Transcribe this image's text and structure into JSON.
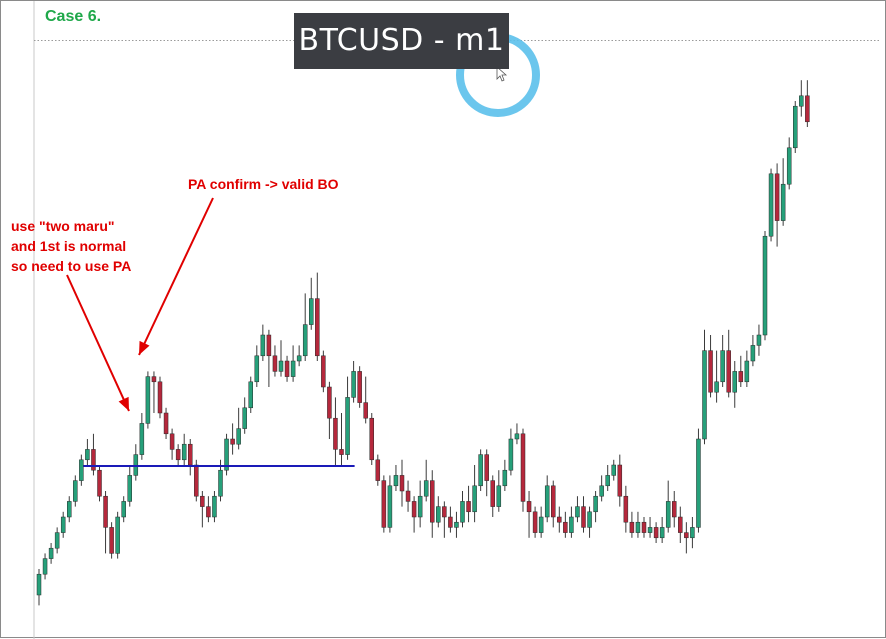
{
  "case_label": "Case 6.",
  "chart_title": "BTCUSD - m1",
  "annotations": {
    "valid_bo": "PA confirm -> valid BO",
    "two_maru": [
      "use \"two maru\"",
      "and 1st is normal",
      "so need to use PA"
    ]
  },
  "colors": {
    "bull": "#26a07a",
    "bear": "#b5283c",
    "wick": "#3a3a3a",
    "level_line": "#1a1ab8",
    "arrow": "#e00000",
    "cursor_ring": "#5bc0eb",
    "grid_dotted": "#9a9a9a"
  },
  "chart_data": {
    "type": "candlestick",
    "symbol": "BTCUSD",
    "timeframe": "m1",
    "ylim": [
      0,
      100
    ],
    "candles": [
      [
        5,
        9,
        3,
        10
      ],
      [
        9,
        12,
        8,
        13
      ],
      [
        12,
        14,
        11,
        15
      ],
      [
        14,
        17,
        13,
        18
      ],
      [
        17,
        20,
        16,
        21
      ],
      [
        20,
        23,
        19,
        24
      ],
      [
        23,
        27,
        22,
        28
      ],
      [
        27,
        31,
        26,
        32
      ],
      [
        31,
        33,
        30,
        35
      ],
      [
        33,
        29,
        28,
        36
      ],
      [
        29,
        24,
        23,
        30
      ],
      [
        24,
        18,
        13,
        25
      ],
      [
        18,
        13,
        12,
        19
      ],
      [
        13,
        20,
        12,
        21
      ],
      [
        20,
        23,
        19,
        24
      ],
      [
        23,
        28,
        22,
        30
      ],
      [
        28,
        32,
        27,
        34
      ],
      [
        32,
        38,
        31,
        40
      ],
      [
        38,
        47,
        37,
        48
      ],
      [
        47,
        46,
        40,
        48
      ],
      [
        46,
        40,
        39,
        47
      ],
      [
        40,
        36,
        35,
        41
      ],
      [
        36,
        33,
        31,
        37
      ],
      [
        33,
        31,
        30,
        34
      ],
      [
        31,
        34,
        30,
        36
      ],
      [
        34,
        30,
        28,
        35
      ],
      [
        30,
        24,
        23,
        31
      ],
      [
        24,
        22,
        18,
        25
      ],
      [
        22,
        20,
        19,
        24
      ],
      [
        20,
        24,
        19,
        25
      ],
      [
        24,
        29,
        23,
        31
      ],
      [
        29,
        35,
        28,
        36
      ],
      [
        35,
        34,
        32,
        38
      ],
      [
        34,
        37,
        33,
        41
      ],
      [
        37,
        41,
        36,
        43
      ],
      [
        41,
        46,
        40,
        47
      ],
      [
        46,
        51,
        45,
        53
      ],
      [
        51,
        55,
        50,
        57
      ],
      [
        55,
        51,
        45,
        56
      ],
      [
        51,
        48,
        47,
        53
      ],
      [
        48,
        50,
        47,
        54
      ],
      [
        50,
        47,
        46,
        51
      ],
      [
        47,
        50,
        46,
        53
      ],
      [
        50,
        51,
        49,
        53
      ],
      [
        51,
        57,
        50,
        63
      ],
      [
        57,
        62,
        56,
        66
      ],
      [
        62,
        51,
        50,
        67
      ],
      [
        51,
        45,
        44,
        52
      ],
      [
        45,
        39,
        35,
        46
      ],
      [
        39,
        33,
        30,
        43
      ],
      [
        33,
        32,
        30,
        40
      ],
      [
        32,
        43,
        31,
        47
      ],
      [
        43,
        48,
        42,
        50
      ],
      [
        48,
        42,
        41,
        49
      ],
      [
        42,
        39,
        38,
        47
      ],
      [
        39,
        31,
        30,
        40
      ],
      [
        31,
        27,
        26,
        32
      ],
      [
        27,
        18,
        17,
        28
      ],
      [
        18,
        26,
        17,
        28
      ],
      [
        26,
        28,
        25,
        30
      ],
      [
        28,
        25,
        22,
        31
      ],
      [
        25,
        23,
        21,
        27
      ],
      [
        23,
        20,
        17,
        24
      ],
      [
        20,
        24,
        18,
        27
      ],
      [
        24,
        27,
        23,
        31
      ],
      [
        27,
        19,
        16,
        29
      ],
      [
        19,
        22,
        18,
        24
      ],
      [
        22,
        20,
        16,
        23
      ],
      [
        20,
        18,
        17,
        22
      ],
      [
        18,
        19,
        16,
        21
      ],
      [
        19,
        23,
        18,
        25
      ],
      [
        23,
        21,
        19,
        26
      ],
      [
        21,
        26,
        19,
        30
      ],
      [
        26,
        32,
        25,
        33
      ],
      [
        32,
        27,
        24,
        33
      ],
      [
        27,
        22,
        20,
        28
      ],
      [
        22,
        26,
        21,
        29
      ],
      [
        26,
        29,
        25,
        31
      ],
      [
        29,
        35,
        28,
        37
      ],
      [
        35,
        36,
        34,
        38
      ],
      [
        36,
        23,
        21,
        37
      ],
      [
        23,
        21,
        16,
        25
      ],
      [
        21,
        17,
        16,
        22
      ],
      [
        17,
        20,
        16,
        22
      ],
      [
        20,
        26,
        19,
        28
      ],
      [
        26,
        20,
        18,
        27
      ],
      [
        20,
        19,
        17,
        22
      ],
      [
        19,
        17,
        16,
        21
      ],
      [
        17,
        20,
        16,
        22
      ],
      [
        20,
        22,
        19,
        24
      ],
      [
        22,
        18,
        17,
        24
      ],
      [
        18,
        21,
        16,
        22
      ],
      [
        21,
        24,
        19,
        25
      ],
      [
        24,
        26,
        23,
        28
      ],
      [
        26,
        28,
        25,
        30
      ],
      [
        28,
        30,
        27,
        31
      ],
      [
        30,
        24,
        22,
        32
      ],
      [
        24,
        19,
        17,
        26
      ],
      [
        19,
        17,
        16,
        21
      ],
      [
        17,
        19,
        16,
        21
      ],
      [
        19,
        17,
        16,
        20
      ],
      [
        17,
        18,
        16,
        20
      ],
      [
        18,
        16,
        15,
        19
      ],
      [
        16,
        18,
        15,
        20
      ],
      [
        18,
        23,
        17,
        27
      ],
      [
        23,
        20,
        18,
        25
      ],
      [
        20,
        17,
        15,
        22
      ],
      [
        17,
        16,
        13,
        19
      ],
      [
        16,
        18,
        14,
        20
      ],
      [
        18,
        35,
        17,
        37
      ],
      [
        35,
        52,
        34,
        56
      ],
      [
        52,
        44,
        43,
        55
      ],
      [
        44,
        46,
        42,
        52
      ],
      [
        46,
        52,
        45,
        55
      ],
      [
        52,
        44,
        43,
        56
      ],
      [
        44,
        48,
        41,
        50
      ],
      [
        48,
        46,
        45,
        51
      ],
      [
        46,
        50,
        45,
        52
      ],
      [
        50,
        53,
        49,
        55
      ],
      [
        53,
        55,
        51,
        57
      ],
      [
        55,
        74,
        54,
        75
      ],
      [
        74,
        86,
        73,
        87
      ],
      [
        86,
        77,
        72,
        88
      ],
      [
        77,
        84,
        76,
        89
      ],
      [
        84,
        91,
        83,
        93
      ],
      [
        91,
        99,
        90,
        100
      ],
      [
        99,
        101,
        97,
        104
      ],
      [
        101,
        96,
        95,
        104
      ]
    ],
    "levels": [
      {
        "price": 29.8,
        "from_index": 8,
        "to_index": 52
      }
    ]
  }
}
